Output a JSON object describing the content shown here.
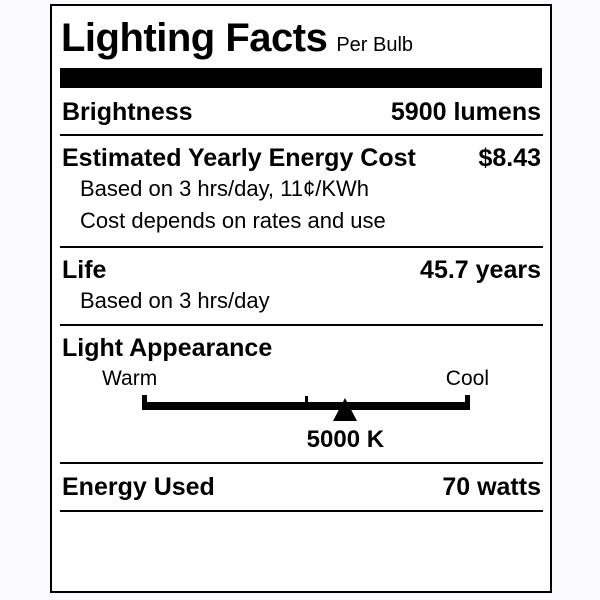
{
  "label": {
    "title": "Lighting Facts",
    "subtitle": "Per Bulb",
    "colors": {
      "ink": "#000000",
      "background": "#ffffff",
      "page_background": "#fbfbfd"
    },
    "rows": {
      "brightness": {
        "label": "Brightness",
        "value": "5900 lumens"
      },
      "energy_cost": {
        "label": "Estimated Yearly Energy Cost",
        "value": "$8.43",
        "notes": [
          "Based on 3 hrs/day, 11¢/KWh",
          "Cost depends on rates and use"
        ]
      },
      "life": {
        "label": "Life",
        "value": "45.7 years",
        "notes": [
          "Based on 3 hrs/day"
        ]
      },
      "light_appearance": {
        "label": "Light Appearance",
        "warm_label": "Warm",
        "cool_label": "Cool",
        "kelvin": "5000 K",
        "pointer_percent": 62
      },
      "energy_used": {
        "label": "Energy Used",
        "value": "70 watts"
      }
    }
  }
}
